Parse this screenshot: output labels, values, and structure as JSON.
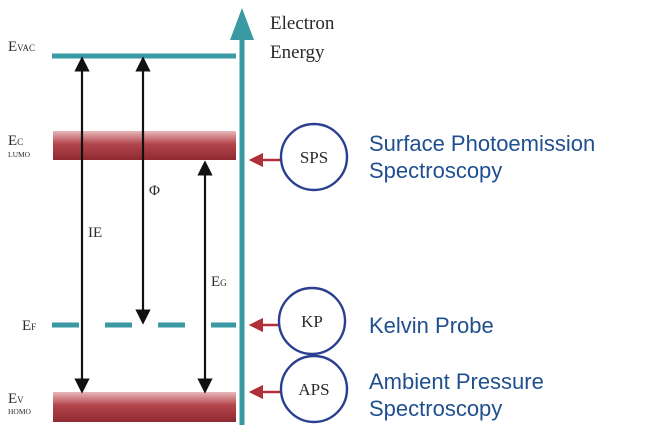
{
  "colors": {
    "axis": "#3a9aa3",
    "band": "#a2323a",
    "band_light": "#e8b8ba",
    "arrow": "#111111",
    "pointer": "#b0303a",
    "circle": "#2a3f8f",
    "technique_text": "#1f4f8f"
  },
  "axis": {
    "label_line1": "Electron",
    "label_line2": "Energy"
  },
  "levels": {
    "vac": {
      "main": "E",
      "sub": "VAC"
    },
    "c": {
      "main": "E",
      "sub": "C",
      "sub2": "LUMO"
    },
    "f": {
      "main": "E",
      "sub": "F"
    },
    "v": {
      "main": "E",
      "sub": "V",
      "sub2": "HOMO"
    }
  },
  "arrows": {
    "ie": "IE",
    "phi": "Φ",
    "eg": {
      "main": "E",
      "sub": "G"
    }
  },
  "techniques": [
    {
      "abbr": "SPS",
      "line1": "Surface Photoemission",
      "line2": "Spectroscopy"
    },
    {
      "abbr": "KP",
      "line1": "Kelvin Probe",
      "line2": ""
    },
    {
      "abbr": "APS",
      "line1": "Ambient Pressure",
      "line2": "Spectroscopy"
    }
  ]
}
